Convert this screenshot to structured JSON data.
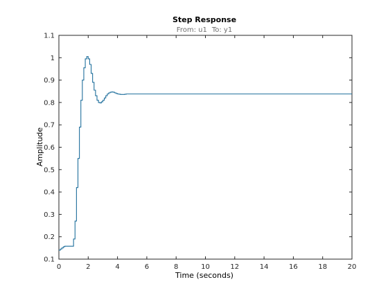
{
  "chart_data": {
    "type": "line",
    "style": "stairs",
    "title": "Step Response",
    "subtitle_from_label": "From: u1",
    "subtitle_to_label": "To: y1",
    "xlabel": "Time (seconds)",
    "ylabel": "Amplitude",
    "xlim": [
      0,
      20
    ],
    "ylim": [
      0.1,
      1.1
    ],
    "x_ticks": [
      "0",
      "2",
      "4",
      "6",
      "8",
      "10",
      "12",
      "14",
      "16",
      "18",
      "20"
    ],
    "y_ticks": [
      "0.1",
      "0.2",
      "0.3",
      "0.4",
      "0.5",
      "0.6",
      "0.7",
      "0.8",
      "0.9",
      "1",
      "1.1"
    ],
    "grid": false,
    "line_color": "#1f6f9c",
    "series": [
      {
        "x": [
          0,
          0.1,
          0.2,
          0.3,
          0.4,
          0.5,
          0.6,
          0.7,
          0.8,
          0.9,
          1.0,
          1.1,
          1.2,
          1.3,
          1.4,
          1.5,
          1.6,
          1.7,
          1.8,
          1.9,
          2.0,
          2.1,
          2.2,
          2.3,
          2.4,
          2.5,
          2.6,
          2.7,
          2.8,
          2.9,
          3.0,
          3.1,
          3.2,
          3.3,
          3.4,
          3.5,
          3.6,
          3.7,
          3.8,
          3.9,
          4.0,
          4.1,
          4.2,
          4.3,
          4.4,
          4.5,
          4.6,
          4.7,
          4.8,
          4.9,
          5.0,
          5.1,
          5.2,
          5.3,
          5.4,
          6,
          8,
          10,
          12,
          14,
          16,
          18,
          20
        ],
        "y": [
          0.14,
          0.145,
          0.15,
          0.155,
          0.158,
          0.158,
          0.158,
          0.158,
          0.158,
          0.158,
          0.19,
          0.27,
          0.42,
          0.55,
          0.69,
          0.81,
          0.9,
          0.955,
          0.995,
          1.005,
          0.995,
          0.97,
          0.93,
          0.89,
          0.855,
          0.83,
          0.81,
          0.8,
          0.798,
          0.803,
          0.81,
          0.82,
          0.83,
          0.838,
          0.843,
          0.846,
          0.847,
          0.846,
          0.843,
          0.84,
          0.838,
          0.837,
          0.836,
          0.836,
          0.836,
          0.837,
          0.838,
          0.838,
          0.838,
          0.838,
          0.838,
          0.838,
          0.838,
          0.838,
          0.838,
          0.838,
          0.838,
          0.838,
          0.838,
          0.838,
          0.838,
          0.838,
          0.838
        ]
      }
    ]
  }
}
